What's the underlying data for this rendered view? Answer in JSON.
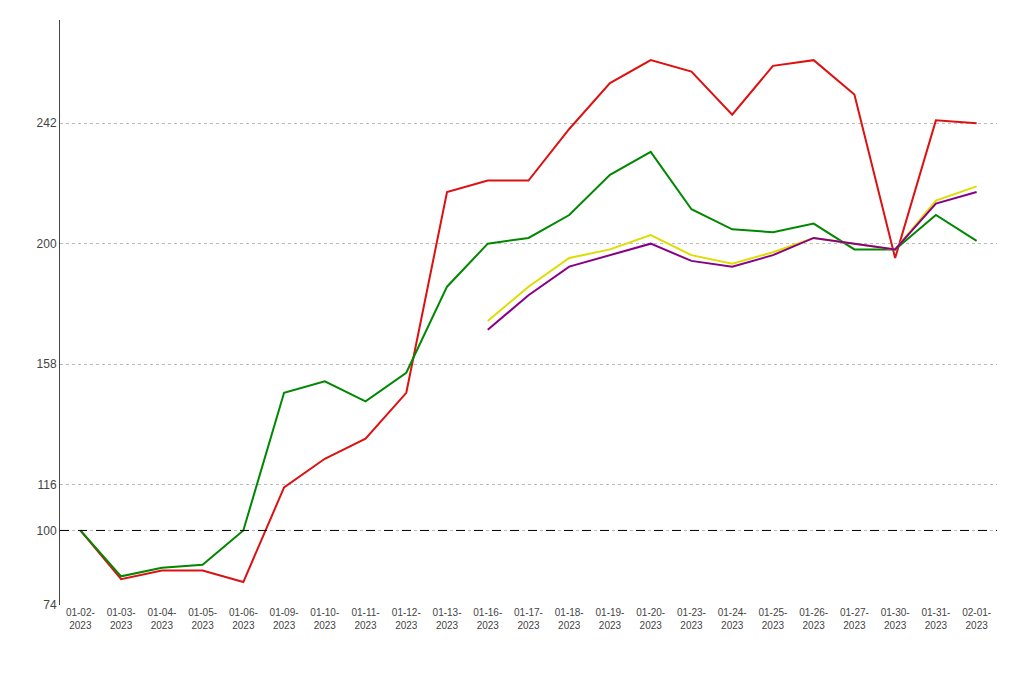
{
  "chart_data": {
    "type": "line",
    "categories": [
      "01-02-\n2023",
      "01-03-\n2023",
      "01-04-\n2023",
      "01-05-\n2023",
      "01-06-\n2023",
      "01-09-\n2023",
      "01-10-\n2023",
      "01-11-\n2023",
      "01-12-\n2023",
      "01-13-\n2023",
      "01-16-\n2023",
      "01-17-\n2023",
      "01-18-\n2023",
      "01-19-\n2023",
      "01-20-\n2023",
      "01-23-\n2023",
      "01-24-\n2023",
      "01-25-\n2023",
      "01-26-\n2023",
      "01-27-\n2023",
      "01-30-\n2023",
      "01-31-\n2023",
      "02-01-\n2023"
    ],
    "series": [
      {
        "color": "#dd1111",
        "values": [
          100,
          83,
          86,
          86,
          82,
          115,
          125,
          132,
          148,
          218,
          222,
          222,
          240,
          256,
          264,
          260,
          245,
          262,
          264,
          252,
          195,
          243,
          242
        ]
      },
      {
        "color": "#008800",
        "values": [
          100,
          84,
          87,
          88,
          100,
          148,
          152,
          145,
          155,
          185,
          200,
          202,
          210,
          224,
          232,
          212,
          205,
          204,
          207,
          198,
          198,
          210,
          201
        ]
      },
      {
        "color": "#dddd00",
        "values": [
          null,
          null,
          null,
          null,
          null,
          null,
          null,
          null,
          null,
          null,
          173,
          185,
          195,
          198,
          203,
          196,
          193,
          197,
          202,
          200,
          198,
          215,
          220
        ]
      },
      {
        "color": "#880088",
        "values": [
          null,
          null,
          null,
          null,
          null,
          null,
          null,
          null,
          null,
          null,
          170,
          182,
          192,
          196,
          200,
          194,
          192,
          196,
          202,
          200,
          198,
          214,
          218
        ]
      }
    ],
    "ylim": [
      74,
      278
    ],
    "yticks": [
      74,
      100,
      116,
      158,
      200,
      242
    ],
    "reference_line": 100,
    "grid": true
  }
}
